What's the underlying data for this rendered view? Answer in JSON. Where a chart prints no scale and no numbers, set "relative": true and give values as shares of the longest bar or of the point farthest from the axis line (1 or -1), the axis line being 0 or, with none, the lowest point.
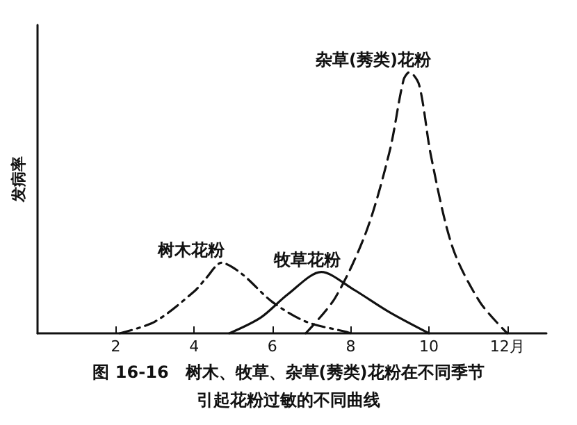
{
  "chart_data": {
    "type": "line",
    "relative": true,
    "ylabel": "发病率",
    "xlim": [
      0,
      13
    ],
    "xticks": [
      2,
      4,
      6,
      8,
      10,
      {
        "value": 12,
        "label": "12月"
      }
    ],
    "grid": false,
    "legend": false,
    "marker": "none",
    "annotations": [
      "图 16-16　树木、牧草、杂草(莠类)花粉在不同季节",
      "引起花粉过敏的不同曲线"
    ],
    "series": [
      {
        "name": "树木花粉",
        "color": "#111111",
        "line_style": "dashdot",
        "x": [
          2.1,
          3.0,
          4.0,
          4.3,
          4.7,
          5.2,
          6.0,
          6.85,
          7.9,
          8.0
        ],
        "values": [
          0,
          0.045,
          0.16,
          0.21,
          0.27,
          0.23,
          0.12,
          0.045,
          0.005,
          0
        ]
      },
      {
        "name": "牧草花粉",
        "color": "#111111",
        "line_style": "solid",
        "x": [
          4.9,
          5.7,
          6.4,
          7.25,
          8.05,
          9.0,
          10.0
        ],
        "values": [
          0,
          0.06,
          0.15,
          0.235,
          0.17,
          0.08,
          0
        ]
      },
      {
        "name": "杂草(莠类)花粉",
        "color": "#111111",
        "line_style": "dashed",
        "x": [
          6.85,
          7.6,
          8.4,
          9.0,
          9.35,
          9.5,
          9.75,
          10.05,
          10.6,
          11.3,
          12.0
        ],
        "values": [
          0,
          0.135,
          0.39,
          0.7,
          0.97,
          1.0,
          0.95,
          0.68,
          0.33,
          0.12,
          0
        ]
      }
    ]
  }
}
